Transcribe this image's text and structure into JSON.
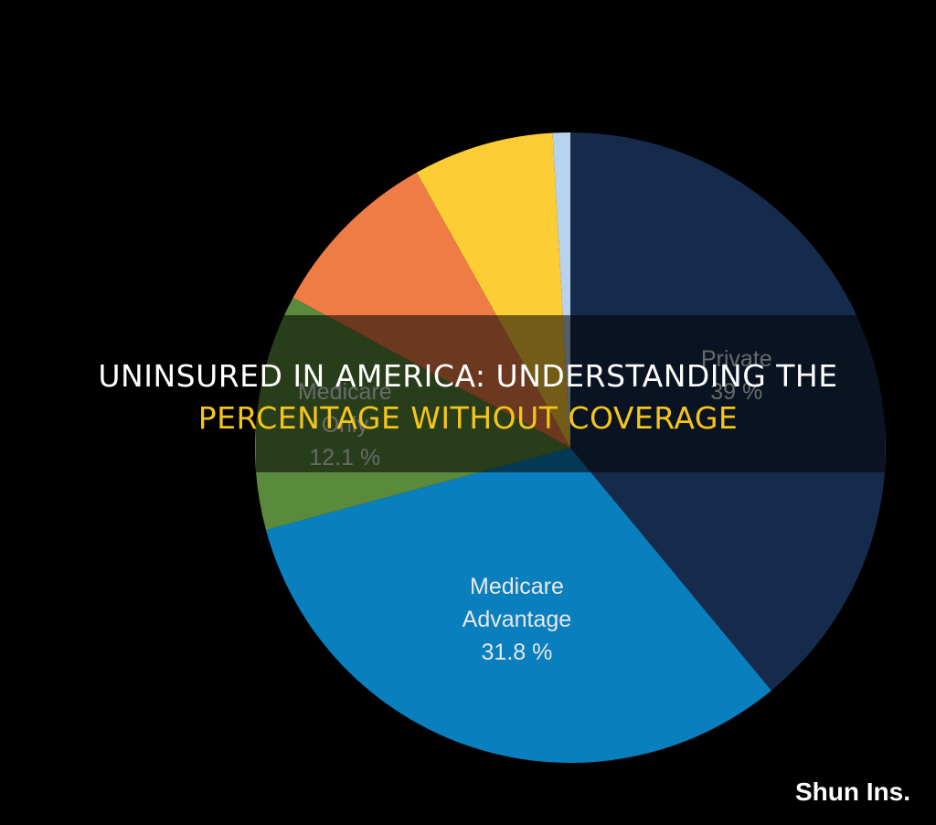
{
  "chart_data": {
    "type": "pie",
    "categories": [
      "Private",
      "Medicare Advantage",
      "Medicare Only",
      null,
      null,
      null
    ],
    "values": [
      39,
      31.8,
      12.1,
      9,
      7.2,
      0.9
    ],
    "value_labels": [
      "39 %",
      "31.8 %",
      "12.1 %",
      null,
      null,
      null
    ],
    "colors": [
      "#162b4b",
      "#0a7fbd",
      "#5a8a3c",
      "#ef7c45",
      "#fdcd35",
      "#b7d3ee"
    ]
  },
  "banner": {
    "line1": "UNINSURED IN AMERICA: UNDERSTANDING THE",
    "line2": "PERCENTAGE WITHOUT COVERAGE"
  },
  "watermark": "Shun Ins."
}
